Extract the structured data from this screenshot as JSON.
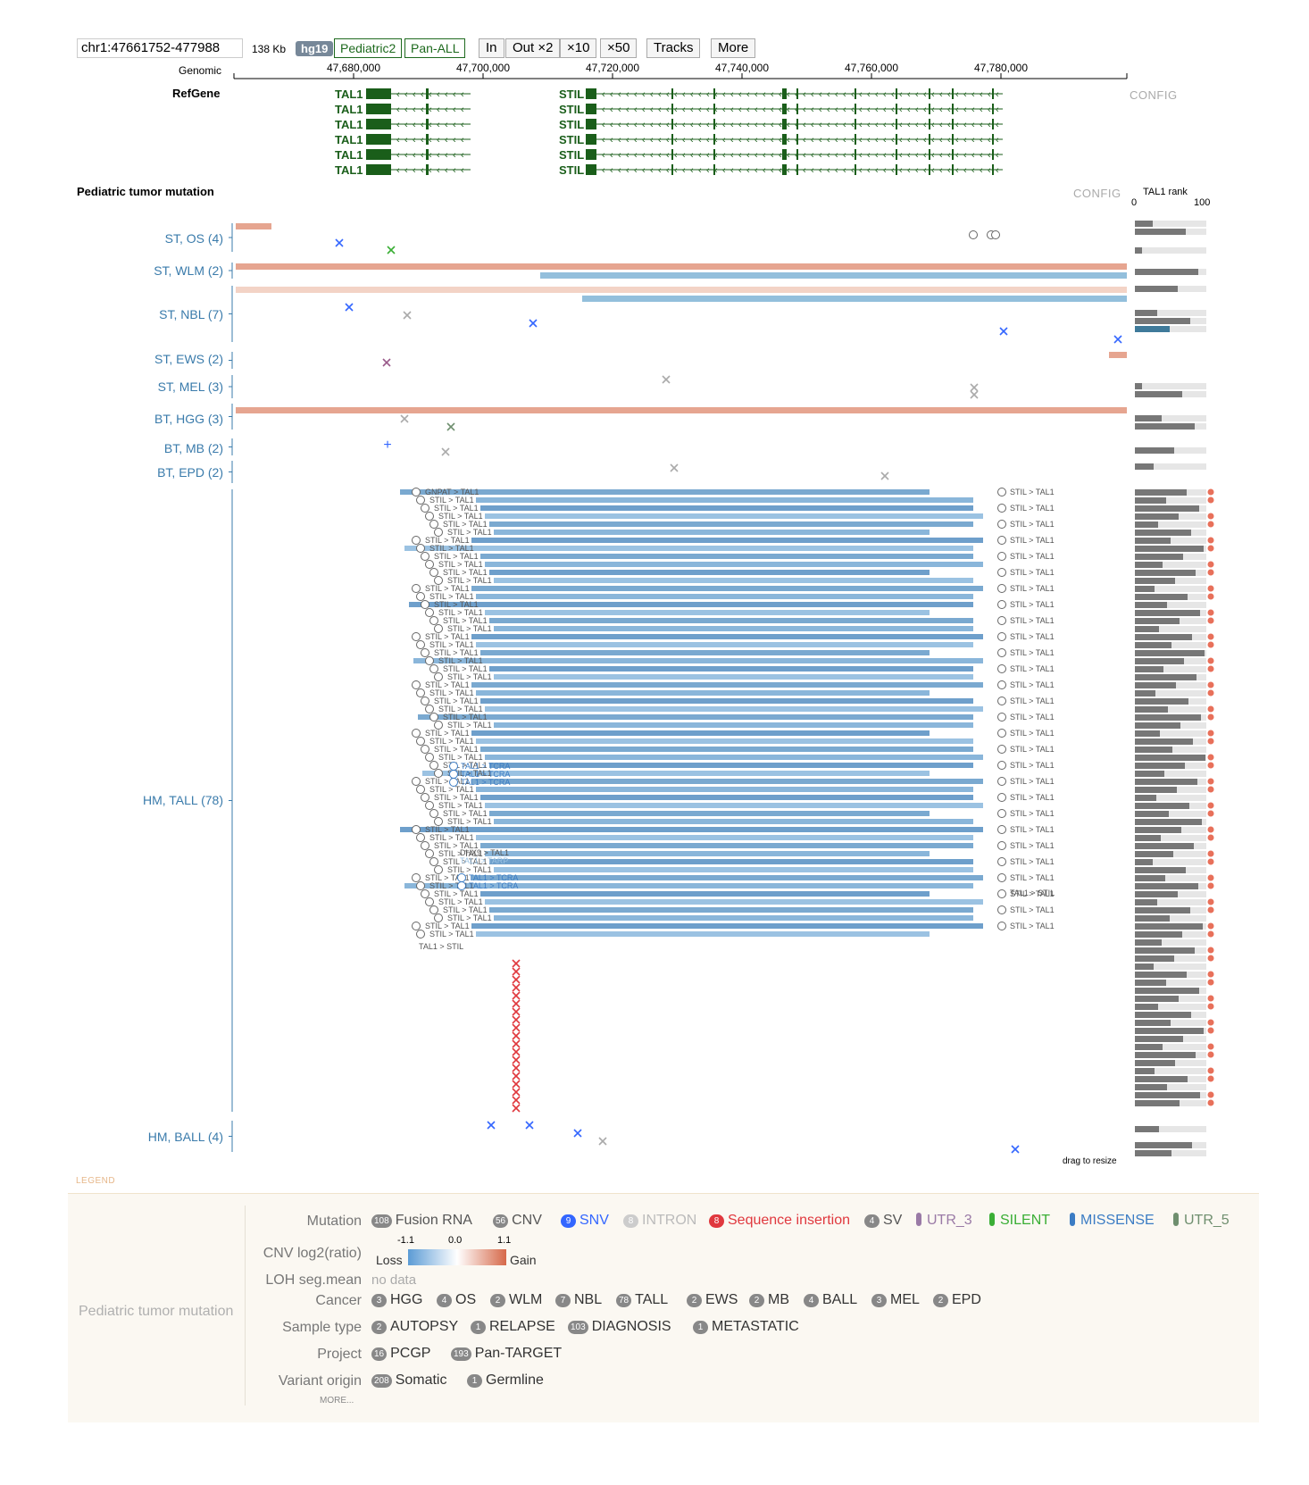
{
  "toolbar": {
    "coordinate": "chr1:47661752-477988",
    "span": "138 Kb",
    "genome": "hg19",
    "datasets": [
      "Pediatric2",
      "Pan-ALL"
    ],
    "buttons": [
      "In",
      "Out ×2",
      "×10",
      "×50",
      "Tracks",
      "More"
    ]
  },
  "ruler": {
    "label": "Genomic",
    "ticks": [
      "47,680,000",
      "47,700,000",
      "47,720,000",
      "47,740,000",
      "47,760,000",
      "47,780,000"
    ]
  },
  "refgene": {
    "title": "RefGene",
    "config": "CONFIG",
    "genes": [
      {
        "name": "TAL1",
        "rows": 6
      },
      {
        "name": "STIL",
        "rows": 6
      }
    ]
  },
  "mutation_track": {
    "title": "Pediatric tumor mutation",
    "config": "CONFIG",
    "rank_title": "TAL1 rank",
    "rank_min": "0",
    "rank_max": "100",
    "groups": [
      {
        "label": "ST, OS (4)"
      },
      {
        "label": "ST, WLM (2)"
      },
      {
        "label": "ST, NBL (7)"
      },
      {
        "label": "ST, EWS (2)"
      },
      {
        "label": "ST, MEL (3)"
      },
      {
        "label": "BT, HGG (3)"
      },
      {
        "label": "BT, MB (2)"
      },
      {
        "label": "BT, EPD (2)"
      },
      {
        "label": "HM, TALL (78)"
      },
      {
        "label": "HM, BALL (4)"
      }
    ],
    "fusion_labels": {
      "left_first": "GNPAT > TAL1",
      "stil_tal1": "STIL > TAL1",
      "tal1_tcra": "TAL1 > TCRA",
      "tal1_stil": "TAL1 > STIL",
      "dhx9_tal1": "DHX9 > TAL1",
      "tal1_tarp": "TAL1 > TARP"
    },
    "resize_hint": "drag to resize"
  },
  "legend": {
    "tag": "LEGEND",
    "section": "Pediatric tumor mutation",
    "rows": [
      {
        "key": "Mutation",
        "items": [
          {
            "count": "108",
            "label": "Fusion RNA",
            "color": "#555555"
          },
          {
            "count": "56",
            "label": "CNV",
            "color": "#555555"
          },
          {
            "count": "9",
            "label": "SNV",
            "color": "#3366ff"
          },
          {
            "count": "8",
            "label": "INTRON",
            "color": "#bbbbbb"
          },
          {
            "count": "8",
            "label": "Sequence insertion",
            "color": "#e0383e"
          },
          {
            "count": "4",
            "label": "SV",
            "color": "#555555"
          },
          {
            "count": "",
            "label": "UTR_3",
            "color": "#9a7aa6"
          },
          {
            "count": "",
            "label": "SILENT",
            "color": "#3aae35"
          },
          {
            "count": "",
            "label": "MISSENSE",
            "color": "#3b7cc4"
          },
          {
            "count": "",
            "label": "UTR_5",
            "color": "#6f8f6f"
          }
        ]
      },
      {
        "key": "CNV log2(ratio)",
        "cnv": {
          "min": "-1.1",
          "mid": "0.0",
          "max": "1.1",
          "loss": "Loss",
          "gain": "Gain"
        }
      },
      {
        "key": "LOH seg.mean",
        "nodata": "no data"
      },
      {
        "key": "Cancer",
        "items": [
          {
            "count": "3",
            "label": "HGG"
          },
          {
            "count": "4",
            "label": "OS"
          },
          {
            "count": "2",
            "label": "WLM"
          },
          {
            "count": "7",
            "label": "NBL"
          },
          {
            "count": "78",
            "label": "TALL"
          },
          {
            "count": "2",
            "label": "EWS"
          },
          {
            "count": "2",
            "label": "MB"
          },
          {
            "count": "4",
            "label": "BALL"
          },
          {
            "count": "3",
            "label": "MEL"
          },
          {
            "count": "2",
            "label": "EPD"
          }
        ]
      },
      {
        "key": "Sample type",
        "items": [
          {
            "count": "2",
            "label": "AUTOPSY"
          },
          {
            "count": "1",
            "label": "RELAPSE"
          },
          {
            "count": "103",
            "label": "DIAGNOSIS"
          },
          {
            "count": "1",
            "label": "METASTATIC"
          }
        ]
      },
      {
        "key": "Project",
        "items": [
          {
            "count": "16",
            "label": "PCGP"
          },
          {
            "count": "193",
            "label": "Pan-TARGET"
          }
        ]
      },
      {
        "key": "Variant origin",
        "items": [
          {
            "count": "208",
            "label": "Somatic"
          },
          {
            "count": "1",
            "label": "Germline"
          }
        ]
      }
    ],
    "more": "MORE..."
  },
  "colors": {
    "gene": "#1a5e1a",
    "cnv_gain": "#e6a590",
    "cnv_loss": "#93bfdc",
    "fusion": "#6fa8d6",
    "snv_blue": "#3366ff",
    "snv_grey": "#aaaaaa",
    "insertion": "#e0383e",
    "rank_bar": "#777777",
    "rank_bg": "#e6e6e6",
    "rank_orange": "#c85a1e",
    "rank_green": "#9fd0a5",
    "rank_teal": "#3f7a9a",
    "rank_dot": "#e8705a",
    "axis": "#3a7bab"
  }
}
